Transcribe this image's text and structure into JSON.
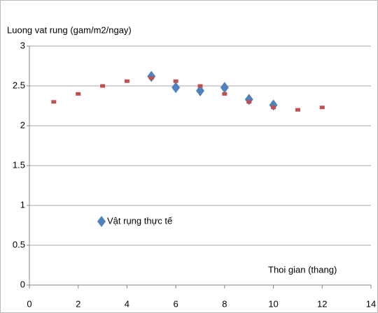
{
  "chart_data": {
    "type": "scatter",
    "y_axis_title": "Luong vat rung (gam/m2/ngay)",
    "x_axis_title": "Thoi gian (thang)",
    "series": [
      {
        "name": "Vật rụng thực tế",
        "color": "#4f81bd",
        "marker": "diamond",
        "x": [
          5,
          6,
          7,
          8,
          9,
          10
        ],
        "values": [
          2.62,
          2.48,
          2.44,
          2.48,
          2.33,
          2.26
        ]
      },
      {
        "color": "#c0504d",
        "marker": "square",
        "x": [
          1,
          2,
          3,
          4,
          5,
          6,
          7,
          8,
          9,
          10,
          11,
          12
        ],
        "values": [
          2.3,
          2.4,
          2.5,
          2.56,
          2.6,
          2.56,
          2.5,
          2.4,
          2.3,
          2.23,
          2.2,
          2.23
        ]
      }
    ],
    "xlim": [
      0,
      14
    ],
    "xticks": [
      0,
      2,
      4,
      6,
      8,
      10,
      12,
      14
    ],
    "ylim": [
      0,
      3
    ],
    "yticks": [
      0,
      0.5,
      1,
      1.5,
      2,
      2.5,
      3
    ],
    "grid": true
  }
}
